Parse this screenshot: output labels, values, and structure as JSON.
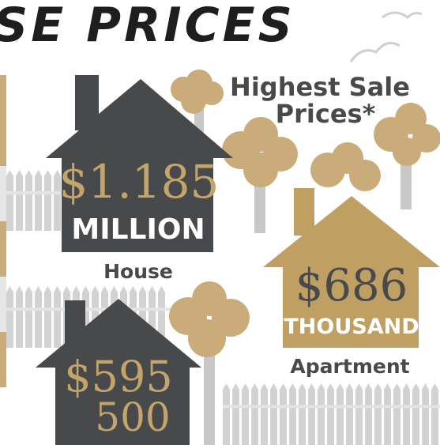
{
  "header": {
    "title": "SE PRICES",
    "subtitle": [
      "Highest Sale",
      "Prices*"
    ]
  },
  "items": [
    {
      "amount": "$1.185",
      "unit": "MILLION",
      "label": "House"
    },
    {
      "amount": "$686",
      "unit": "THOUSAND",
      "label": "Apartment"
    },
    {
      "amount": "$595",
      "unit": "500"
    }
  ]
}
